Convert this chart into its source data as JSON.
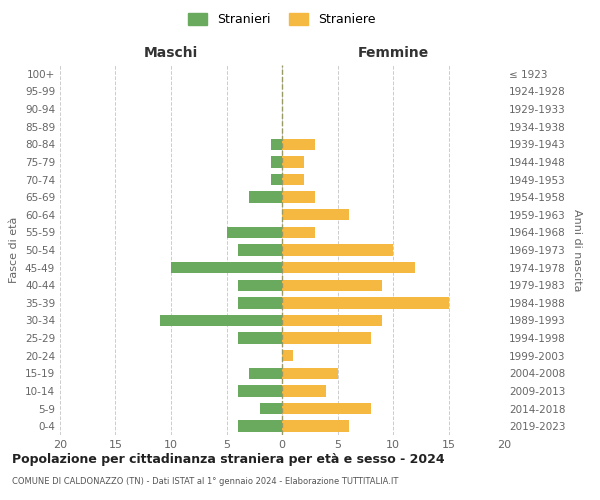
{
  "age_groups": [
    "0-4",
    "5-9",
    "10-14",
    "15-19",
    "20-24",
    "25-29",
    "30-34",
    "35-39",
    "40-44",
    "45-49",
    "50-54",
    "55-59",
    "60-64",
    "65-69",
    "70-74",
    "75-79",
    "80-84",
    "85-89",
    "90-94",
    "95-99",
    "100+"
  ],
  "birth_years": [
    "2019-2023",
    "2014-2018",
    "2009-2013",
    "2004-2008",
    "1999-2003",
    "1994-1998",
    "1989-1993",
    "1984-1988",
    "1979-1983",
    "1974-1978",
    "1969-1973",
    "1964-1968",
    "1959-1963",
    "1954-1958",
    "1949-1953",
    "1944-1948",
    "1939-1943",
    "1934-1938",
    "1929-1933",
    "1924-1928",
    "≤ 1923"
  ],
  "maschi": [
    4,
    2,
    4,
    3,
    0,
    4,
    11,
    4,
    4,
    10,
    4,
    5,
    0,
    3,
    1,
    1,
    1,
    0,
    0,
    0,
    0
  ],
  "femmine": [
    6,
    8,
    4,
    5,
    1,
    8,
    9,
    15,
    9,
    12,
    10,
    3,
    6,
    3,
    2,
    2,
    3,
    0,
    0,
    0,
    0
  ],
  "maschi_color": "#6aaa5e",
  "femmine_color": "#f5b942",
  "title": "Popolazione per cittadinanza straniera per età e sesso - 2024",
  "subtitle": "COMUNE DI CALDONAZZO (TN) - Dati ISTAT al 1° gennaio 2024 - Elaborazione TUTTITALIA.IT",
  "xlabel_left": "Maschi",
  "xlabel_right": "Femmine",
  "ylabel_left": "Fasce di età",
  "ylabel_right": "Anni di nascita",
  "legend_maschi": "Stranieri",
  "legend_femmine": "Straniere",
  "xlim": 20,
  "bg_color": "#ffffff",
  "grid_color": "#cccccc"
}
